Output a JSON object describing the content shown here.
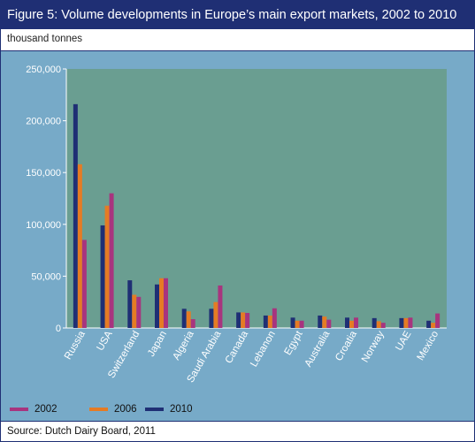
{
  "figure": {
    "title": "Figure 5: Volume developments in Europe’s main export markets, 2002 to 2010",
    "unit": "thousand tonnes",
    "source": "Source: Dutch Dairy Board, 2011"
  },
  "colors": {
    "title_bg": "#1f2f74",
    "panel_bg": "#77aac8",
    "plot_bg": "#6a9e91",
    "s2002": "#a8347e",
    "s2006": "#e57b24",
    "s2010": "#1f2f74"
  },
  "chart_data": {
    "type": "bar",
    "title": "Figure 5: Volume developments in Europe’s main export markets, 2002 to 2010",
    "ylabel": "thousand tonnes",
    "xlabel": "",
    "ylim": [
      0,
      250000
    ],
    "yticks": [
      0,
      50000,
      100000,
      150000,
      200000,
      250000
    ],
    "ytick_labels": [
      "0",
      "50,000",
      "100,000",
      "150,000",
      "200,000",
      "250,000"
    ],
    "grid": false,
    "legend_position": "bottom-left",
    "legend_order": [
      "2002",
      "2006",
      "2010"
    ],
    "categories": [
      "Russia",
      "USA",
      "Switzerland",
      "Japan",
      "Algeria",
      "Saudi Arabia",
      "Canada",
      "Lebanon",
      "Egypt",
      "Australia",
      "Croatia",
      "Norway",
      "UAE",
      "Mexico"
    ],
    "series": [
      {
        "name": "2010",
        "color_key": "s2010",
        "values": [
          216000,
          99000,
          46000,
          42000,
          18500,
          18500,
          15000,
          12000,
          10000,
          12000,
          10000,
          9500,
          9500,
          7000
        ]
      },
      {
        "name": "2006",
        "color_key": "s2006",
        "values": [
          158000,
          118000,
          32000,
          48000,
          16000,
          25000,
          15000,
          12000,
          7000,
          11000,
          7000,
          6500,
          9500,
          5000
        ]
      },
      {
        "name": "2002",
        "color_key": "s2002",
        "values": [
          85000,
          130000,
          30000,
          48000,
          8500,
          41000,
          14500,
          19000,
          7000,
          8000,
          10000,
          5000,
          10000,
          14000
        ]
      }
    ]
  }
}
